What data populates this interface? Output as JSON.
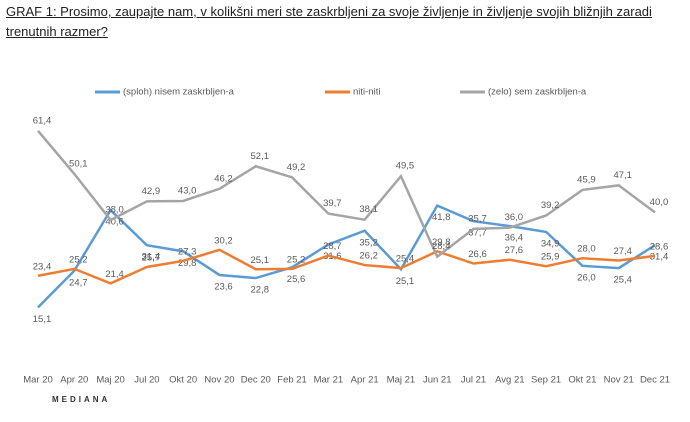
{
  "chart_data": {
    "type": "line",
    "title": "GRAF 1: Prosimo, zaupajte nam, v kolikšni meri ste zaskrbljeni za svoje življenje in življenje svojih bližnjih zaradi trenutnih razmer?",
    "logo": "MEDIANA",
    "categories": [
      "Mar 20",
      "Apr 20",
      "Maj 20",
      "Jul 20",
      "Okt 20",
      "Nov 20",
      "Dec 20",
      "Feb 21",
      "Mar 21",
      "Apr 21",
      "Maj 21",
      "Jun 21",
      "Jul 21",
      "Avg 21",
      "Sep 21",
      "Okt 21",
      "Nov 21",
      "Dec 21"
    ],
    "ylim": [
      0,
      70
    ],
    "series": [
      {
        "name": "(sploh) nisem zaskrbljen-a",
        "color": "#5b9bd5",
        "values": [
          15.1,
          24.7,
          40.6,
          31.4,
          29.8,
          23.6,
          22.8,
          25.6,
          31.6,
          35.2,
          25.1,
          41.8,
          37.7,
          36.4,
          34.9,
          26.0,
          25.4,
          31.4
        ],
        "value_labels": [
          "15,1",
          "24,7",
          "40,6",
          "31,4",
          "29,8",
          "23,6",
          "22,8",
          "25,6",
          "31,6",
          "35,2",
          "25,1",
          "41,8",
          "37,7",
          "36,4",
          "34,9",
          "26,0",
          "25,4",
          "31,4"
        ]
      },
      {
        "name": "niti-niti",
        "color": "#ed7d31",
        "values": [
          23.4,
          25.2,
          21.4,
          25.7,
          27.3,
          30.2,
          25.1,
          25.2,
          28.7,
          26.2,
          25.4,
          29.8,
          26.6,
          27.6,
          25.9,
          28.0,
          27.4,
          28.6
        ],
        "value_labels": [
          "23,4",
          "25,2",
          "21,4",
          "25,7",
          "27,3",
          "30,2",
          "25,1",
          "25,2",
          "28,7",
          "26,2",
          "25,4",
          "29,8",
          "26,6",
          "27,6",
          "25,9",
          "28,0",
          "27,4",
          "28,6"
        ]
      },
      {
        "name": "(zelo) sem zaskrbljen-a",
        "color": "#a5a5a5",
        "values": [
          61.4,
          50.1,
          38.0,
          42.9,
          43.0,
          46.2,
          52.1,
          49.2,
          39.7,
          38.1,
          49.5,
          28.4,
          35.7,
          36.0,
          39.2,
          45.9,
          47.1,
          40.0
        ],
        "value_labels": [
          "61,4",
          "50,1",
          "38,0",
          "42,9",
          "43,0",
          "46,2",
          "52,1",
          "49,2",
          "39,7",
          "38,1",
          "49,5",
          "28,4",
          "35,7",
          "36,0",
          "39,2",
          "45,9",
          "47,1",
          "40,0"
        ]
      }
    ]
  }
}
